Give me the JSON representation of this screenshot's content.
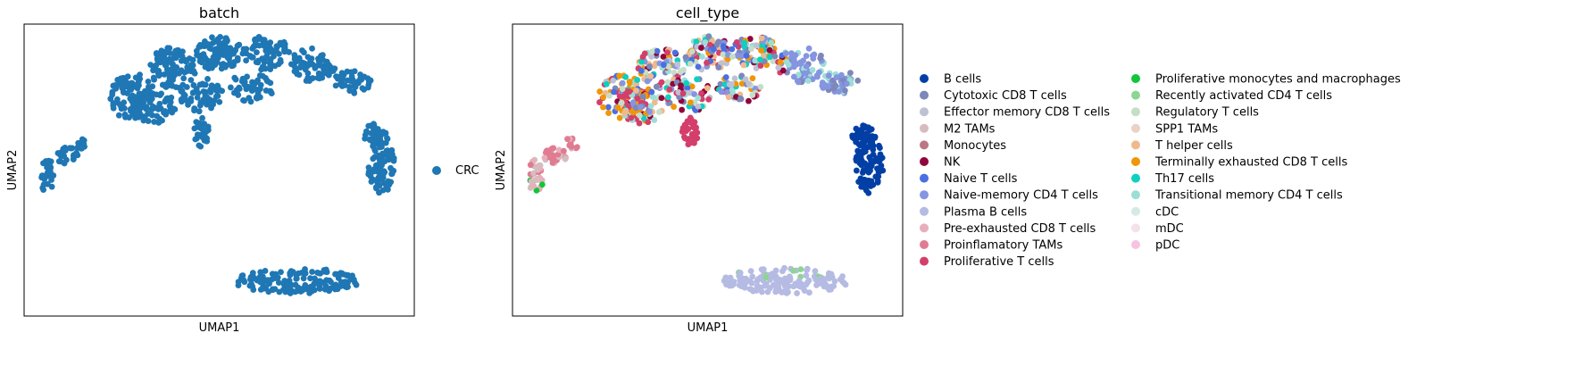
{
  "chart_data": [
    {
      "type": "scatter",
      "title": "batch",
      "xlabel": "UMAP1",
      "ylabel": "UMAP2",
      "ticks": "none",
      "legend": {
        "position": "right",
        "items": [
          {
            "name": "CRC",
            "color": "#1f77b4"
          }
        ]
      },
      "note": "UMAP embedding; all cells colored by batch (single batch CRC)."
    },
    {
      "type": "scatter",
      "title": "cell_type",
      "xlabel": "UMAP1",
      "ylabel": "UMAP2",
      "ticks": "none",
      "legend": {
        "position": "right",
        "columns": 2,
        "items": [
          {
            "name": "B cells",
            "color": "#023fa5"
          },
          {
            "name": "Cytotoxic CD8 T cells",
            "color": "#7d87b9"
          },
          {
            "name": "Effector memory CD8 T cells",
            "color": "#bec1d4"
          },
          {
            "name": "M2 TAMs",
            "color": "#d6bcc0"
          },
          {
            "name": "Monocytes",
            "color": "#bb7784"
          },
          {
            "name": "NK",
            "color": "#8e063b"
          },
          {
            "name": "Naive T cells",
            "color": "#4a6fe3"
          },
          {
            "name": "Naive-memory CD4 T cells",
            "color": "#8595e1"
          },
          {
            "name": "Plasma B cells",
            "color": "#b5bbe3"
          },
          {
            "name": "Pre-exhausted CD8 T cells",
            "color": "#e6afb9"
          },
          {
            "name": "Proinflamatory TAMs",
            "color": "#e07b91"
          },
          {
            "name": "Proliferative T cells",
            "color": "#d33f6a"
          },
          {
            "name": "Proliferative monocytes and macrophages",
            "color": "#11c638"
          },
          {
            "name": "Recently activated CD4 T cells",
            "color": "#8dd593"
          },
          {
            "name": "Regulatory T cells",
            "color": "#c6dec7"
          },
          {
            "name": "SPP1 TAMs",
            "color": "#ead3c6"
          },
          {
            "name": "T helper cells",
            "color": "#f0b98d"
          },
          {
            "name": "Terminally exhausted CD8 T cells",
            "color": "#ef9708"
          },
          {
            "name": "Th17 cells",
            "color": "#0fcfc0"
          },
          {
            "name": "Transitional memory CD4 T cells",
            "color": "#9cded6"
          },
          {
            "name": "cDC",
            "color": "#d5eae7"
          },
          {
            "name": "mDC",
            "color": "#f3e1eb"
          },
          {
            "name": "pDC",
            "color": "#f6c4e1"
          }
        ]
      }
    }
  ]
}
